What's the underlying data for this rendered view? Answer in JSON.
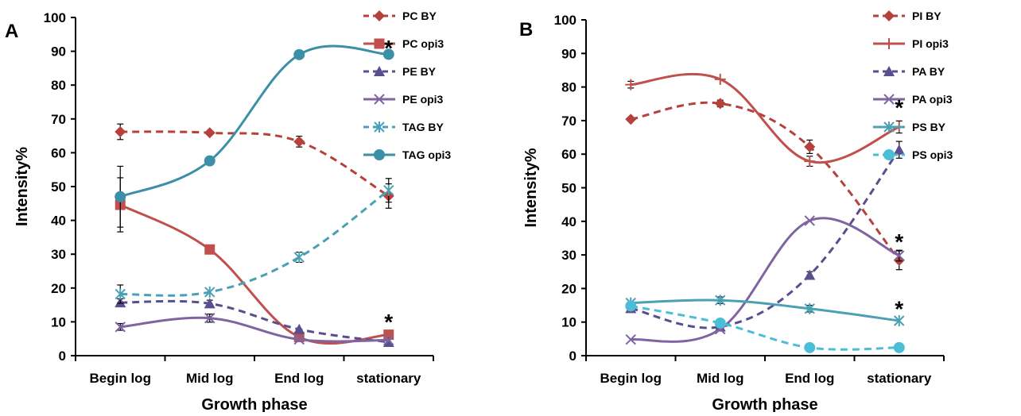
{
  "chart_data": [
    {
      "panel": "A",
      "type": "line",
      "categories": [
        "Begin log",
        "Mid log",
        "End log",
        "stationary"
      ],
      "xlabel": "Growth phase",
      "ylabel": "Intensity%",
      "ylim": [
        0,
        100
      ],
      "yticks": [
        "0",
        "10",
        "20",
        "30",
        "40",
        "50",
        "60",
        "70",
        "80",
        "90",
        "100"
      ],
      "legend_position": "right",
      "series": [
        {
          "name": "PC BY",
          "color": "#b5413c",
          "dash": true,
          "marker": "diamond",
          "values": [
            66.2,
            65.9,
            63.3,
            47.2
          ],
          "errors": [
            2.3,
            0.6,
            1.6,
            3.6
          ]
        },
        {
          "name": "PC opi3",
          "color": "#c0504d",
          "dash": false,
          "marker": "square",
          "values": [
            44.6,
            31.4,
            5.5,
            6.2
          ],
          "errors": [
            8.0,
            0.5,
            0.5,
            0.5
          ]
        },
        {
          "name": "PE BY",
          "color": "#5b4e8e",
          "dash": true,
          "marker": "triangle",
          "values": [
            15.7,
            15.4,
            7.8,
            4.0
          ],
          "errors": [
            1.1,
            1.0,
            0.5,
            0.5
          ]
        },
        {
          "name": "PE opi3",
          "color": "#8064a2",
          "dash": false,
          "marker": "x",
          "values": [
            8.5,
            11.1,
            4.8,
            4.6
          ],
          "errors": [
            1.0,
            1.2,
            0.5,
            0.5
          ]
        },
        {
          "name": "TAG BY",
          "color": "#4aa1b4",
          "dash": true,
          "marker": "star",
          "values": [
            18.2,
            18.8,
            29.1,
            48.9
          ],
          "errors": [
            2.7,
            0.6,
            1.5,
            3.5
          ]
        },
        {
          "name": "TAG opi3",
          "color": "#3b8fa6",
          "dash": false,
          "marker": "circle",
          "values": [
            47.0,
            57.6,
            89.0,
            89.1
          ],
          "errors": [
            9.0,
            0.5,
            0.5,
            0.5
          ]
        }
      ],
      "annotations": [
        {
          "text": "*",
          "category": "stationary",
          "y": 92
        },
        {
          "text": "*",
          "category": "stationary",
          "y": 11
        }
      ]
    },
    {
      "panel": "B",
      "type": "line",
      "categories": [
        "Begin log",
        "Mid log",
        "End log",
        "stationary"
      ],
      "xlabel": "Growth phase",
      "ylabel": "Intensity%",
      "ylim": [
        0,
        100
      ],
      "yticks": [
        "0",
        "10",
        "20",
        "30",
        "40",
        "50",
        "60",
        "70",
        "80",
        "90",
        "100"
      ],
      "legend_position": "right",
      "series": [
        {
          "name": "PI BY",
          "color": "#b5413c",
          "dash": true,
          "marker": "diamond",
          "values": [
            70.4,
            75.1,
            62.2,
            28.4
          ],
          "errors": [
            0.6,
            1.0,
            2.0,
            2.8
          ]
        },
        {
          "name": "PI opi3",
          "color": "#c0504d",
          "dash": false,
          "marker": "plus",
          "values": [
            80.7,
            82.3,
            57.9,
            68.1
          ],
          "errors": [
            1.0,
            0.5,
            1.5,
            1.8
          ]
        },
        {
          "name": "PA BY",
          "color": "#5b4e8e",
          "dash": true,
          "marker": "triangle",
          "values": [
            14.1,
            8.6,
            24.0,
            61.3
          ],
          "errors": [
            0.6,
            0.5,
            1.0,
            2.5
          ]
        },
        {
          "name": "PA opi3",
          "color": "#8064a2",
          "dash": false,
          "marker": "x",
          "values": [
            4.8,
            7.9,
            40.2,
            29.8
          ],
          "errors": [
            0.5,
            0.5,
            0.6,
            1.6
          ]
        },
        {
          "name": "PS BY",
          "color": "#4aa1b4",
          "dash": false,
          "marker": "star",
          "values": [
            15.7,
            16.5,
            14.0,
            10.4
          ],
          "errors": [
            0.6,
            1.0,
            1.0,
            0.6
          ]
        },
        {
          "name": "PS opi3",
          "color": "#4bbdd6",
          "dash": true,
          "marker": "circle",
          "values": [
            14.8,
            9.7,
            2.4,
            2.4
          ],
          "errors": [
            0.5,
            0.5,
            0.5,
            0.5
          ]
        }
      ],
      "annotations": [
        {
          "text": "*",
          "category": "stationary",
          "y": 75
        },
        {
          "text": "*",
          "category": "stationary",
          "y": 35
        },
        {
          "text": "*",
          "category": "stationary",
          "y": 15
        }
      ]
    }
  ]
}
